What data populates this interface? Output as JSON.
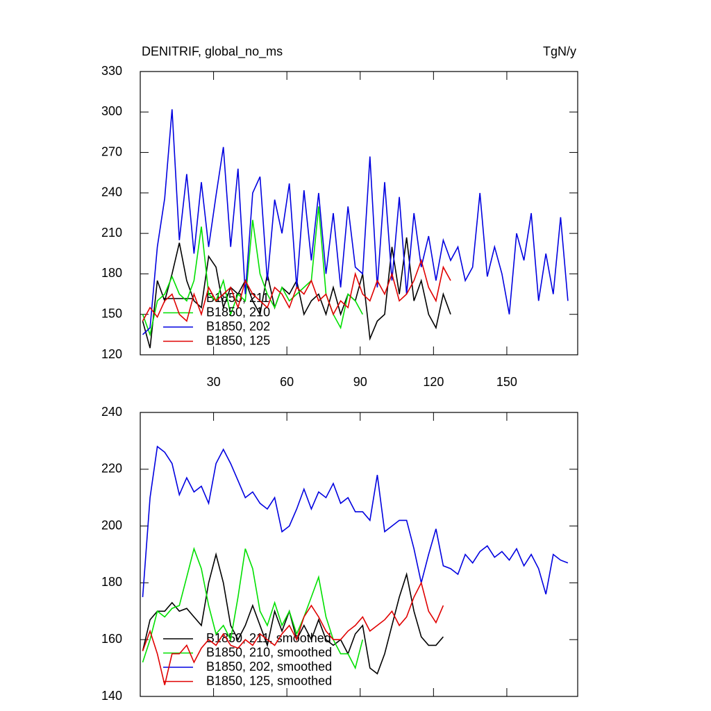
{
  "chart_data": [
    {
      "type": "line",
      "title": "DENITRIF, global_no_ms",
      "units": "TgN/y",
      "x": [
        1,
        4,
        7,
        10,
        13,
        16,
        19,
        22,
        25,
        28,
        31,
        34,
        37,
        40,
        43,
        46,
        49,
        52,
        55,
        58,
        61,
        64,
        67,
        70,
        73,
        76,
        79,
        82,
        85,
        88,
        91,
        94,
        97,
        100,
        103,
        106,
        109,
        112,
        115,
        118,
        121,
        124,
        127,
        130,
        133,
        136,
        139,
        142,
        145,
        148,
        151,
        154,
        157,
        160,
        163,
        166,
        169,
        172,
        175
      ],
      "xlim": [
        0,
        179
      ],
      "xticks": [
        30,
        60,
        90,
        120,
        150
      ],
      "show_xtick_labels": true,
      "ylim": [
        120,
        330
      ],
      "yticks": [
        120,
        150,
        180,
        210,
        240,
        270,
        300,
        330
      ],
      "series": [
        {
          "name": "B1850, 211",
          "color": "#000000",
          "values": [
            145,
            125,
            175,
            160,
            180,
            203,
            175,
            160,
            155,
            193,
            185,
            155,
            170,
            165,
            175,
            160,
            150,
            180,
            155,
            170,
            165,
            175,
            150,
            160,
            165,
            150,
            170,
            150,
            165,
            160,
            180,
            132,
            145,
            150,
            200,
            165,
            207,
            160,
            175,
            150,
            140,
            165,
            150,
            null,
            null,
            null,
            null,
            null,
            null,
            null,
            null,
            null,
            null,
            null,
            null,
            null,
            null,
            null,
            null
          ]
        },
        {
          "name": "B1850, 210",
          "color": "#00e000",
          "values": [
            150,
            135,
            160,
            165,
            178,
            165,
            160,
            175,
            215,
            165,
            160,
            175,
            150,
            165,
            160,
            220,
            180,
            165,
            155,
            170,
            160,
            165,
            170,
            175,
            230,
            165,
            150,
            140,
            165,
            160,
            150,
            null,
            null,
            null,
            null,
            null,
            null,
            null,
            null,
            null,
            null,
            null,
            null,
            null,
            null,
            null,
            null,
            null,
            null,
            null,
            null,
            null,
            null,
            null,
            null,
            null,
            null,
            null,
            null
          ]
        },
        {
          "name": "B1850, 202",
          "color": "#0000e0",
          "values": [
            135,
            140,
            200,
            236,
            302,
            205,
            254,
            195,
            248,
            200,
            238,
            274,
            200,
            258,
            165,
            240,
            252,
            175,
            235,
            210,
            247,
            170,
            242,
            190,
            240,
            180,
            225,
            170,
            230,
            185,
            180,
            267,
            170,
            248,
            175,
            237,
            165,
            225,
            185,
            208,
            175,
            205,
            190,
            200,
            175,
            185,
            240,
            178,
            200,
            180,
            150,
            210,
            190,
            225,
            160,
            195,
            165,
            222,
            160
          ]
        },
        {
          "name": "B1850, 125",
          "color": "#e00000",
          "values": [
            145,
            155,
            148,
            160,
            165,
            150,
            145,
            165,
            150,
            170,
            160,
            165,
            170,
            155,
            175,
            165,
            160,
            155,
            170,
            165,
            155,
            170,
            165,
            175,
            160,
            165,
            150,
            160,
            155,
            180,
            165,
            160,
            175,
            165,
            180,
            160,
            165,
            175,
            190,
            170,
            160,
            185,
            175,
            null,
            null,
            null,
            null,
            null,
            null,
            null,
            null,
            null,
            null,
            null,
            null,
            null,
            null,
            null,
            null
          ]
        }
      ]
    },
    {
      "type": "line",
      "x": [
        1,
        4,
        7,
        10,
        13,
        16,
        19,
        22,
        25,
        28,
        31,
        34,
        37,
        40,
        43,
        46,
        49,
        52,
        55,
        58,
        61,
        64,
        67,
        70,
        73,
        76,
        79,
        82,
        85,
        88,
        91,
        94,
        97,
        100,
        103,
        106,
        109,
        112,
        115,
        118,
        121,
        124,
        127,
        130,
        133,
        136,
        139,
        142,
        145,
        148,
        151,
        154,
        157,
        160,
        163,
        166,
        169,
        172,
        175
      ],
      "xlim": [
        0,
        179
      ],
      "xticks": [
        30,
        60,
        90,
        120,
        150
      ],
      "show_xtick_labels": false,
      "ylim": [
        140,
        240
      ],
      "yticks": [
        140,
        160,
        180,
        200,
        220,
        240
      ],
      "series": [
        {
          "name": "B1850, 211, smoothed",
          "color": "#000000",
          "values": [
            156,
            167,
            170,
            170,
            173,
            170,
            171,
            168,
            165,
            180,
            190,
            180,
            165,
            160,
            165,
            172,
            165,
            158,
            170,
            163,
            170,
            160,
            165,
            160,
            167,
            160,
            158,
            160,
            155,
            162,
            165,
            150,
            148,
            155,
            165,
            175,
            183,
            170,
            161,
            158,
            158,
            161,
            null,
            null,
            null,
            null,
            null,
            null,
            null,
            null,
            null,
            null,
            null,
            null,
            null,
            null,
            null,
            null,
            null
          ]
        },
        {
          "name": "B1850, 210, smoothed",
          "color": "#00e000",
          "values": [
            152,
            160,
            170,
            168,
            171,
            172,
            182,
            192,
            185,
            172,
            162,
            165,
            160,
            175,
            192,
            185,
            170,
            165,
            173,
            165,
            170,
            162,
            168,
            175,
            182,
            168,
            160,
            155,
            155,
            150,
            160,
            null,
            null,
            null,
            null,
            null,
            null,
            null,
            null,
            null,
            null,
            null,
            null,
            null,
            null,
            null,
            null,
            null,
            null,
            null,
            null,
            null,
            null,
            null,
            null,
            null,
            null,
            null,
            null
          ]
        },
        {
          "name": "B1850, 202, smoothed",
          "color": "#0000e0",
          "values": [
            175,
            210,
            228,
            226,
            222,
            211,
            217,
            212,
            214,
            208,
            222,
            227,
            222,
            216,
            210,
            212,
            208,
            206,
            210,
            198,
            200,
            206,
            213,
            206,
            212,
            210,
            215,
            208,
            210,
            205,
            205,
            202,
            218,
            198,
            200,
            202,
            202,
            192,
            180,
            190,
            199,
            186,
            185,
            183,
            190,
            187,
            191,
            193,
            189,
            191,
            188,
            192,
            186,
            190,
            185,
            176,
            190,
            188,
            187
          ]
        },
        {
          "name": "B1850, 125, smoothed",
          "color": "#e00000",
          "values": [
            156,
            163,
            155,
            144,
            155,
            155,
            158,
            152,
            157,
            160,
            158,
            162,
            158,
            157,
            160,
            158,
            162,
            160,
            158,
            162,
            165,
            160,
            168,
            172,
            168,
            163,
            160,
            160,
            163,
            165,
            168,
            163,
            165,
            167,
            170,
            165,
            168,
            175,
            180,
            170,
            166,
            172,
            null,
            null,
            null,
            null,
            null,
            null,
            null,
            null,
            null,
            null,
            null,
            null,
            null,
            null,
            null,
            null,
            null
          ]
        }
      ]
    }
  ]
}
